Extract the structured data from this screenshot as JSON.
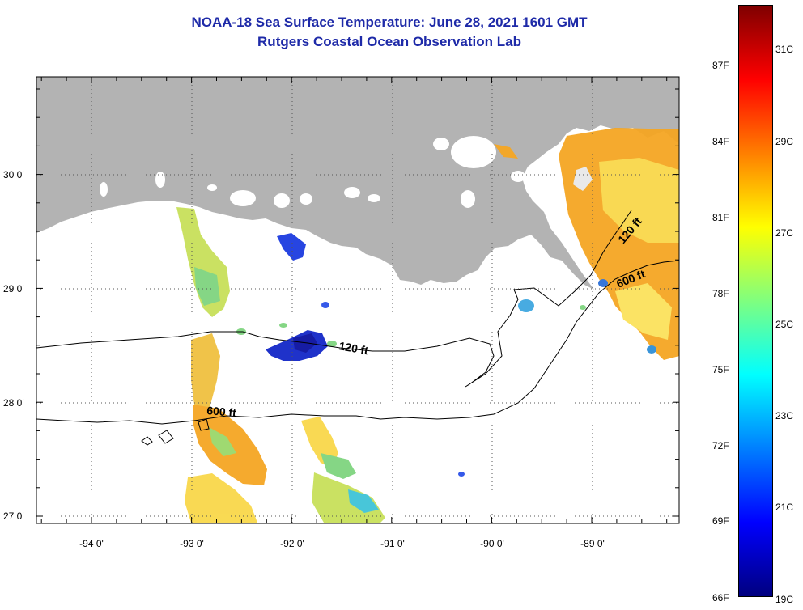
{
  "header": {
    "title": "NOAA-18 Sea Surface Temperature:  June 28, 2021 1601 GMT",
    "subtitle": "Rutgers Coastal Ocean Observation Lab"
  },
  "map": {
    "region": "Northern Gulf of Mexico / Louisiana coast",
    "lon_range": [
      -94.5,
      -88.2
    ],
    "lat_range": [
      26.95,
      30.85
    ],
    "land_color": "#b3b3b3",
    "cloud_mask_color": "#ffffff",
    "lat_ticks": [
      "30 0'",
      "29 0'",
      "28 0'",
      "27 0'"
    ],
    "lon_ticks": [
      "-94 0'",
      "-93 0'",
      "-92 0'",
      "-91 0'",
      "-90 0'",
      "-89 0'"
    ],
    "contour_labels": [
      "120 ft",
      "600 ft",
      "120 ft",
      "600 ft"
    ]
  },
  "colorbar": {
    "fahrenheit_labels": [
      "87F",
      "84F",
      "81F",
      "78F",
      "75F",
      "72F",
      "69F",
      "66F"
    ],
    "celsius_labels": [
      "31C",
      "29C",
      "27C",
      "25C",
      "23C",
      "21C",
      "19C"
    ],
    "range_c": [
      19,
      32
    ],
    "colors": [
      "#00007f",
      "#0000ff",
      "#007fff",
      "#00ffff",
      "#7fff7f",
      "#ffff00",
      "#ff7f00",
      "#ff0000",
      "#7f0000"
    ]
  }
}
